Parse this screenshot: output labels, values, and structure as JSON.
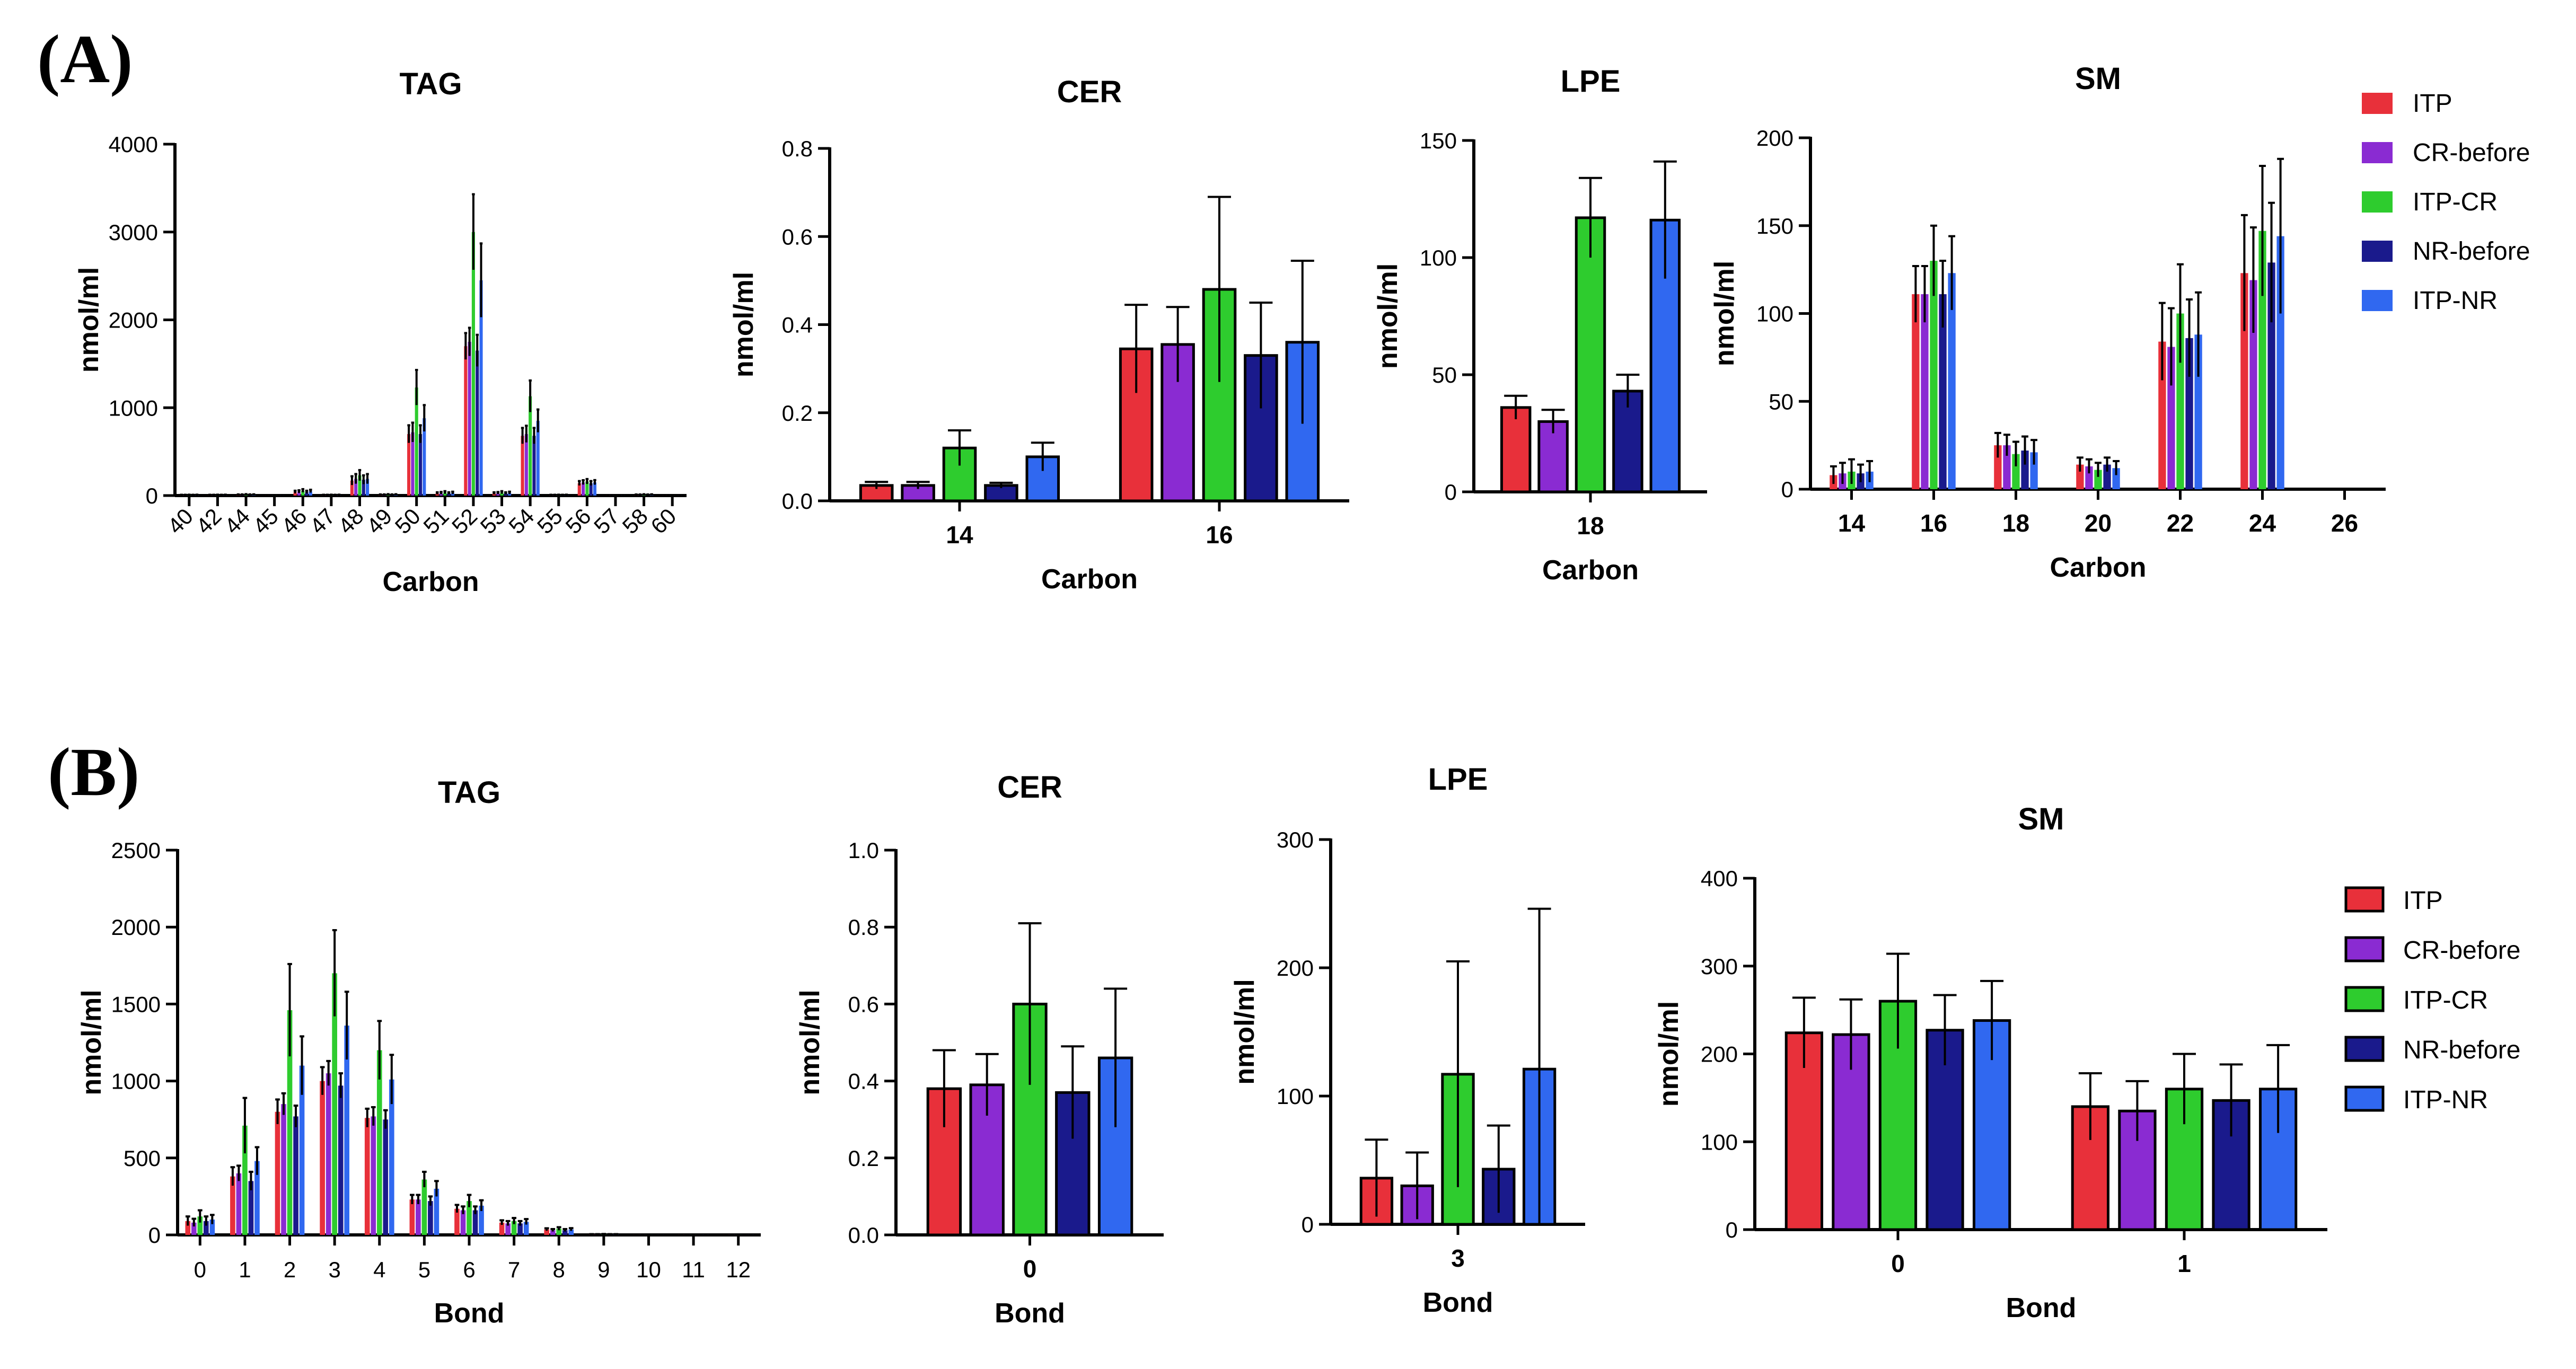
{
  "colors": {
    "ITP": "#E8303A",
    "CR-before": "#8A2BD2",
    "ITP-CR": "#2ECC2E",
    "NR-before": "#1A1A8C",
    "ITP-NR": "#3068F0"
  },
  "series_names": [
    "ITP",
    "CR-before",
    "ITP-CR",
    "NR-before",
    "ITP-NR"
  ],
  "panels": [
    {
      "id": "A",
      "label": "(A)"
    },
    {
      "id": "B",
      "label": "(B)"
    }
  ],
  "legends": [
    {
      "panel": "A",
      "items": [
        "ITP",
        "CR-before",
        "ITP-CR",
        "NR-before",
        "ITP-NR"
      ]
    },
    {
      "panel": "B",
      "items": [
        "ITP",
        "CR-before",
        "ITP-CR",
        "NR-before",
        "ITP-NR"
      ]
    }
  ],
  "chart_data": [
    {
      "panel": "A",
      "type": "bar",
      "title": "TAG",
      "xlabel": "Carbon",
      "ylabel": "nmol/ml",
      "ylim": [
        0,
        4000
      ],
      "yticks": [
        0,
        1000,
        2000,
        3000,
        4000
      ],
      "xtick_rotation": -45,
      "categories": [
        "40",
        "42",
        "44",
        "45",
        "46",
        "47",
        "48",
        "49",
        "50",
        "51",
        "52",
        "53",
        "54",
        "55",
        "56",
        "57",
        "58",
        "60"
      ],
      "series": [
        {
          "name": "ITP",
          "values": [
            5,
            5,
            8,
            3,
            40,
            5,
            170,
            8,
            700,
            25,
            1700,
            25,
            680,
            5,
            140,
            3,
            8,
            3
          ],
          "errors": [
            4,
            4,
            5,
            2,
            15,
            4,
            50,
            5,
            100,
            12,
            150,
            12,
            90,
            4,
            25,
            2,
            4,
            2
          ]
        },
        {
          "name": "CR-before",
          "values": [
            5,
            5,
            8,
            3,
            45,
            5,
            190,
            8,
            720,
            28,
            1750,
            28,
            700,
            5,
            150,
            3,
            8,
            3
          ],
          "errors": [
            4,
            4,
            5,
            2,
            15,
            4,
            55,
            5,
            110,
            13,
            160,
            12,
            95,
            4,
            25,
            2,
            4,
            2
          ]
        },
        {
          "name": "ITP-CR",
          "values": [
            6,
            6,
            10,
            3,
            55,
            6,
            230,
            10,
            1230,
            35,
            3000,
            35,
            1130,
            6,
            160,
            3,
            10,
            3
          ],
          "errors": [
            4,
            4,
            6,
            2,
            18,
            4,
            60,
            6,
            200,
            15,
            430,
            15,
            180,
            4,
            28,
            2,
            5,
            2
          ]
        },
        {
          "name": "NR-before",
          "values": [
            5,
            5,
            8,
            3,
            40,
            5,
            180,
            8,
            700,
            25,
            1650,
            25,
            680,
            5,
            140,
            3,
            8,
            3
          ],
          "errors": [
            4,
            4,
            5,
            2,
            15,
            4,
            50,
            5,
            100,
            12,
            180,
            12,
            90,
            4,
            25,
            2,
            4,
            2
          ]
        },
        {
          "name": "ITP-NR",
          "values": [
            6,
            6,
            9,
            3,
            50,
            6,
            190,
            9,
            880,
            30,
            2450,
            30,
            850,
            6,
            150,
            3,
            9,
            3
          ],
          "errors": [
            4,
            4,
            5,
            2,
            16,
            4,
            55,
            6,
            150,
            14,
            420,
            14,
            130,
            4,
            26,
            2,
            5,
            2
          ]
        }
      ]
    },
    {
      "panel": "A",
      "type": "bar",
      "title": "CER",
      "xlabel": "Carbon",
      "ylabel": "nmol/ml",
      "ylim": [
        0,
        0.8
      ],
      "yticks": [
        0.0,
        0.2,
        0.4,
        0.6,
        0.8
      ],
      "categories": [
        "14",
        "16"
      ],
      "series": [
        {
          "name": "ITP",
          "values": [
            0.035,
            0.345
          ],
          "errors": [
            0.008,
            0.1
          ]
        },
        {
          "name": "CR-before",
          "values": [
            0.035,
            0.355
          ],
          "errors": [
            0.008,
            0.085
          ]
        },
        {
          "name": "ITP-CR",
          "values": [
            0.12,
            0.48
          ],
          "errors": [
            0.04,
            0.21
          ]
        },
        {
          "name": "NR-before",
          "values": [
            0.035,
            0.33
          ],
          "errors": [
            0.006,
            0.12
          ]
        },
        {
          "name": "ITP-NR",
          "values": [
            0.1,
            0.36
          ],
          "errors": [
            0.032,
            0.185
          ]
        }
      ]
    },
    {
      "panel": "A",
      "type": "bar",
      "title": "LPE",
      "xlabel": "Carbon",
      "ylabel": "nmol/ml",
      "ylim": [
        0,
        150
      ],
      "yticks": [
        0,
        50,
        100,
        150
      ],
      "categories": [
        "18"
      ],
      "series": [
        {
          "name": "ITP",
          "values": [
            36
          ],
          "errors": [
            5
          ]
        },
        {
          "name": "CR-before",
          "values": [
            30
          ],
          "errors": [
            5
          ]
        },
        {
          "name": "ITP-CR",
          "values": [
            117
          ],
          "errors": [
            17
          ]
        },
        {
          "name": "NR-before",
          "values": [
            43
          ],
          "errors": [
            7
          ]
        },
        {
          "name": "ITP-NR",
          "values": [
            116
          ],
          "errors": [
            25
          ]
        }
      ]
    },
    {
      "panel": "A",
      "type": "bar",
      "title": "SM",
      "xlabel": "Carbon",
      "ylabel": "nmol/ml",
      "ylim": [
        0,
        200
      ],
      "yticks": [
        0,
        50,
        100,
        150,
        200
      ],
      "categories": [
        "14",
        "16",
        "18",
        "20",
        "22",
        "24",
        "26"
      ],
      "series": [
        {
          "name": "ITP",
          "values": [
            8,
            111,
            25,
            14,
            84,
            123,
            0
          ],
          "errors": [
            5,
            16,
            7,
            4,
            22,
            33,
            0
          ]
        },
        {
          "name": "CR-before",
          "values": [
            9,
            111,
            25,
            13,
            81,
            119,
            0
          ],
          "errors": [
            6,
            16,
            6,
            4,
            22,
            30,
            0
          ]
        },
        {
          "name": "ITP-CR",
          "values": [
            10,
            130,
            20,
            11,
            100,
            147,
            0
          ],
          "errors": [
            7,
            20,
            7,
            4,
            28,
            37,
            0
          ]
        },
        {
          "name": "NR-before",
          "values": [
            9,
            111,
            22,
            14,
            86,
            129,
            0
          ],
          "errors": [
            5,
            19,
            8,
            4,
            22,
            34,
            0
          ]
        },
        {
          "name": "ITP-NR",
          "values": [
            10,
            123,
            21,
            12,
            88,
            144,
            0
          ],
          "errors": [
            6,
            21,
            7,
            4,
            24,
            44,
            0
          ]
        }
      ]
    },
    {
      "panel": "B",
      "type": "bar",
      "title": "TAG",
      "xlabel": "Bond",
      "ylabel": "nmol/ml",
      "ylim": [
        0,
        2500
      ],
      "yticks": [
        0,
        500,
        1000,
        1500,
        2000,
        2500
      ],
      "categories": [
        "0",
        "1",
        "2",
        "3",
        "4",
        "5",
        "6",
        "7",
        "8",
        "9",
        "10",
        "11",
        "12"
      ],
      "series": [
        {
          "name": "ITP",
          "values": [
            90,
            380,
            800,
            1000,
            760,
            230,
            170,
            80,
            35,
            3,
            2,
            2,
            2
          ],
          "errors": [
            30,
            60,
            80,
            90,
            60,
            30,
            25,
            15,
            8,
            2,
            1,
            1,
            1
          ]
        },
        {
          "name": "CR-before",
          "values": [
            80,
            400,
            850,
            1050,
            770,
            230,
            160,
            75,
            30,
            3,
            2,
            2,
            2
          ],
          "errors": [
            25,
            50,
            70,
            80,
            60,
            30,
            25,
            15,
            8,
            2,
            1,
            1,
            1
          ]
        },
        {
          "name": "ITP-CR",
          "values": [
            120,
            710,
            1460,
            1700,
            1200,
            360,
            220,
            90,
            40,
            4,
            2,
            2,
            2
          ],
          "errors": [
            40,
            180,
            300,
            280,
            190,
            50,
            40,
            20,
            10,
            2,
            1,
            1,
            1
          ]
        },
        {
          "name": "NR-before",
          "values": [
            90,
            350,
            770,
            970,
            750,
            220,
            160,
            75,
            30,
            3,
            2,
            2,
            2
          ],
          "errors": [
            30,
            60,
            70,
            80,
            60,
            30,
            25,
            15,
            8,
            2,
            1,
            1,
            1
          ]
        },
        {
          "name": "ITP-NR",
          "values": [
            100,
            480,
            1100,
            1360,
            1010,
            300,
            190,
            85,
            35,
            3,
            2,
            2,
            2
          ],
          "errors": [
            30,
            90,
            190,
            220,
            160,
            50,
            35,
            18,
            9,
            2,
            1,
            1,
            1
          ]
        }
      ]
    },
    {
      "panel": "B",
      "type": "bar",
      "title": "CER",
      "xlabel": "Bond",
      "ylabel": "nmol/ml",
      "ylim": [
        0,
        1.0
      ],
      "yticks": [
        0.0,
        0.2,
        0.4,
        0.6,
        0.8,
        1.0
      ],
      "categories": [
        "0"
      ],
      "series": [
        {
          "name": "ITP",
          "values": [
            0.38
          ],
          "errors": [
            0.1
          ]
        },
        {
          "name": "CR-before",
          "values": [
            0.39
          ],
          "errors": [
            0.08
          ]
        },
        {
          "name": "ITP-CR",
          "values": [
            0.6
          ],
          "errors": [
            0.21
          ]
        },
        {
          "name": "NR-before",
          "values": [
            0.37
          ],
          "errors": [
            0.12
          ]
        },
        {
          "name": "ITP-NR",
          "values": [
            0.46
          ],
          "errors": [
            0.18
          ]
        }
      ]
    },
    {
      "panel": "B",
      "type": "bar",
      "title": "LPE",
      "xlabel": "Bond",
      "ylabel": "nmol/ml",
      "ylim": [
        0,
        300
      ],
      "yticks": [
        0,
        100,
        200,
        300
      ],
      "categories": [
        "3"
      ],
      "series": [
        {
          "name": "ITP",
          "values": [
            36
          ],
          "errors": [
            30
          ]
        },
        {
          "name": "CR-before",
          "values": [
            30
          ],
          "errors": [
            26
          ]
        },
        {
          "name": "ITP-CR",
          "values": [
            117
          ],
          "errors": [
            88
          ]
        },
        {
          "name": "NR-before",
          "values": [
            43
          ],
          "errors": [
            34
          ]
        },
        {
          "name": "ITP-NR",
          "values": [
            121
          ],
          "errors": [
            125
          ]
        }
      ]
    },
    {
      "panel": "B",
      "type": "bar",
      "title": "SM",
      "xlabel": "Bond",
      "ylabel": "nmol/ml",
      "ylim": [
        0,
        400
      ],
      "yticks": [
        0,
        100,
        200,
        300,
        400
      ],
      "categories": [
        "0",
        "1"
      ],
      "series": [
        {
          "name": "ITP",
          "values": [
            224,
            140
          ],
          "errors": [
            40,
            38
          ]
        },
        {
          "name": "CR-before",
          "values": [
            222,
            135
          ],
          "errors": [
            40,
            34
          ]
        },
        {
          "name": "ITP-CR",
          "values": [
            260,
            160
          ],
          "errors": [
            54,
            40
          ]
        },
        {
          "name": "NR-before",
          "values": [
            227,
            147
          ],
          "errors": [
            40,
            41
          ]
        },
        {
          "name": "ITP-NR",
          "values": [
            238,
            160
          ],
          "errors": [
            45,
            50
          ]
        }
      ]
    }
  ]
}
